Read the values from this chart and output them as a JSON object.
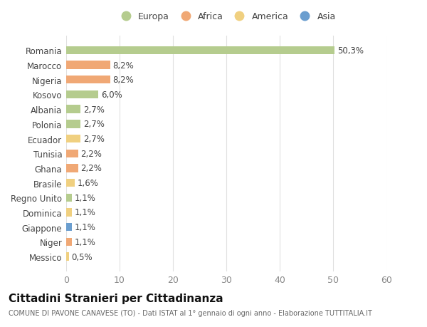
{
  "categories": [
    "Romania",
    "Marocco",
    "Nigeria",
    "Kosovo",
    "Albania",
    "Polonia",
    "Ecuador",
    "Tunisia",
    "Ghana",
    "Brasile",
    "Regno Unito",
    "Dominica",
    "Giappone",
    "Niger",
    "Messico"
  ],
  "values": [
    50.3,
    8.2,
    8.2,
    6.0,
    2.7,
    2.7,
    2.7,
    2.2,
    2.2,
    1.6,
    1.1,
    1.1,
    1.1,
    1.1,
    0.5
  ],
  "labels": [
    "50,3%",
    "8,2%",
    "8,2%",
    "6,0%",
    "2,7%",
    "2,7%",
    "2,7%",
    "2,2%",
    "2,2%",
    "1,6%",
    "1,1%",
    "1,1%",
    "1,1%",
    "1,1%",
    "0,5%"
  ],
  "continents": [
    "Europa",
    "Africa",
    "Africa",
    "Europa",
    "Europa",
    "Europa",
    "America",
    "Africa",
    "Africa",
    "America",
    "Europa",
    "America",
    "Asia",
    "Africa",
    "America"
  ],
  "continent_colors": {
    "Europa": "#b5cc8e",
    "Africa": "#f0a875",
    "America": "#f0d080",
    "Asia": "#6b9ecf"
  },
  "legend_labels": [
    "Europa",
    "Africa",
    "America",
    "Asia"
  ],
  "legend_colors": [
    "#b5cc8e",
    "#f0a875",
    "#f0d080",
    "#6b9ecf"
  ],
  "xlim": [
    0,
    60
  ],
  "xticks": [
    0,
    10,
    20,
    30,
    40,
    50,
    60
  ],
  "title": "Cittadini Stranieri per Cittadinanza",
  "subtitle": "COMUNE DI PAVONE CANAVESE (TO) - Dati ISTAT al 1° gennaio di ogni anno - Elaborazione TUTTITALIA.IT",
  "bg_color": "#ffffff",
  "grid_color": "#e0e0e0",
  "bar_height": 0.55,
  "label_fontsize": 8.5,
  "ytick_fontsize": 8.5,
  "xtick_fontsize": 9,
  "legend_fontsize": 9,
  "title_fontsize": 11,
  "subtitle_fontsize": 7
}
